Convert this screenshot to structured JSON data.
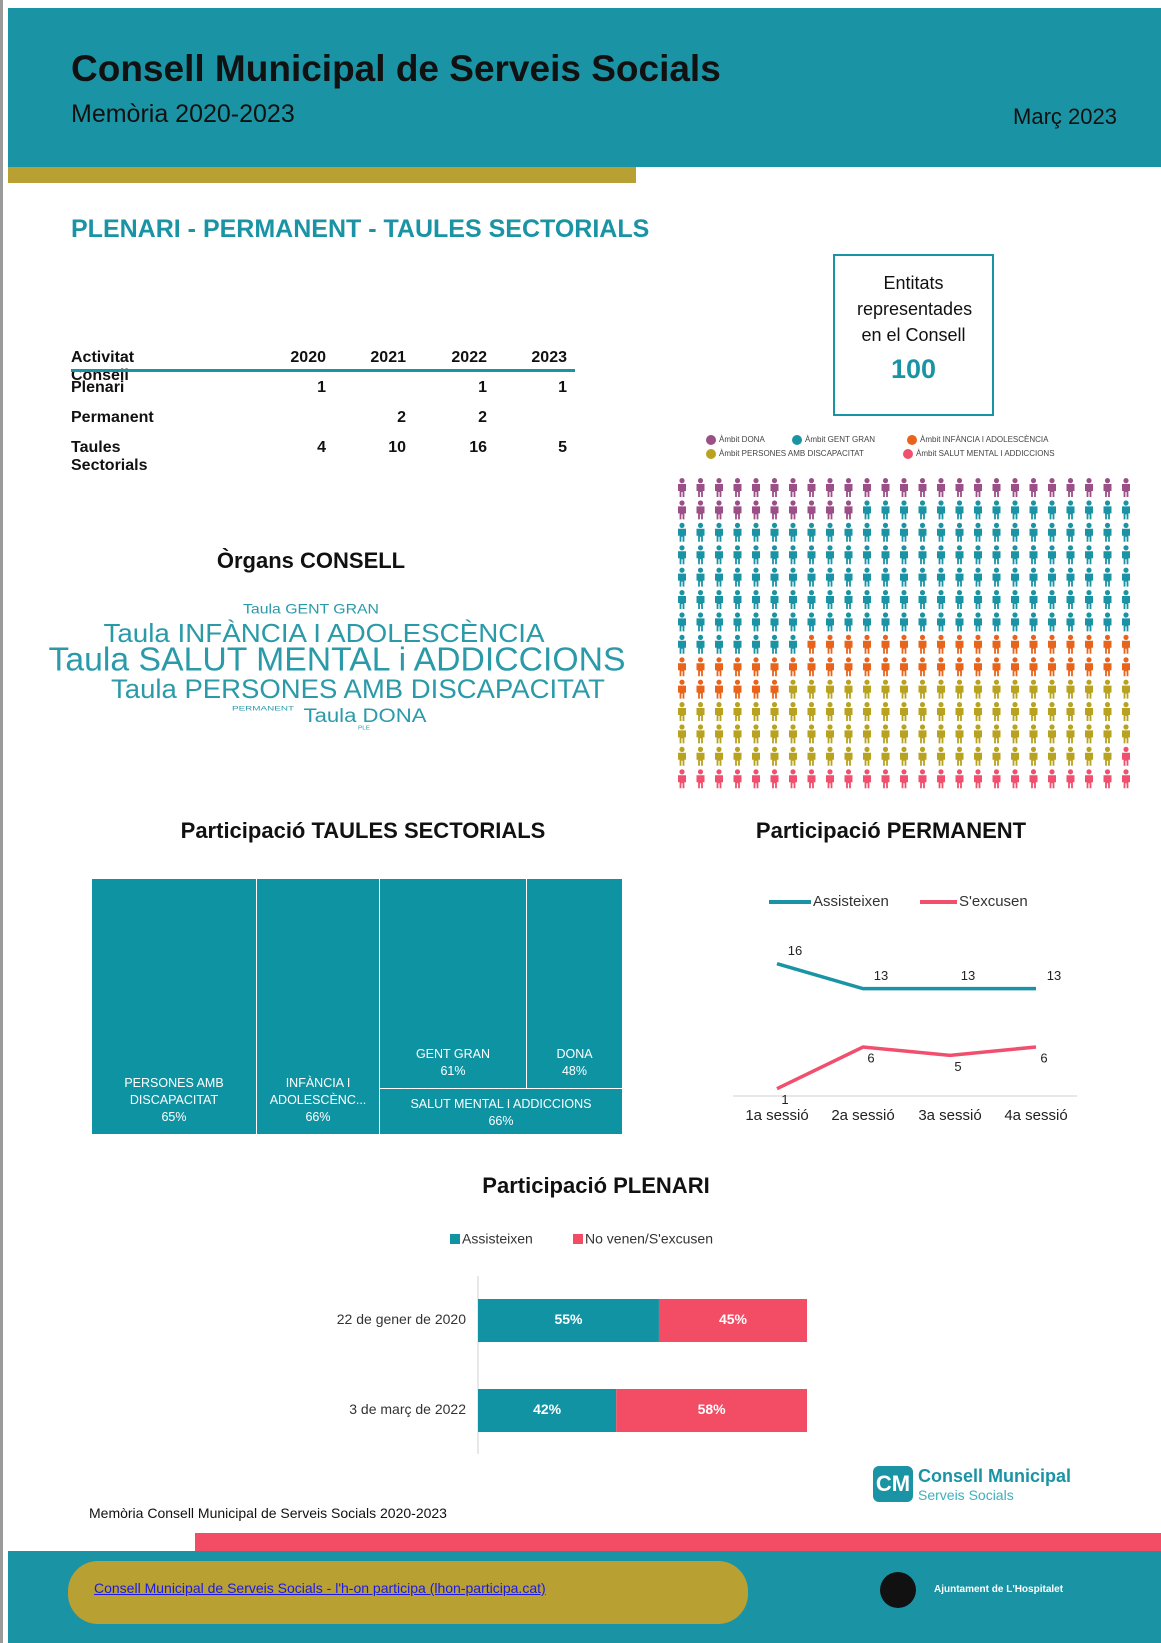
{
  "header": {
    "title": "Consell Municipal de Serveis Socials",
    "subtitle": "Memòria 2020-2023",
    "date": "Març 2023"
  },
  "section_title": "PLENARI - PERMANENT - TAULES SECTORIALS",
  "table": {
    "columns": [
      "Activitat Consell",
      "2020",
      "2021",
      "2022",
      "2023"
    ],
    "rows": [
      [
        "Plenari",
        1,
        null,
        1,
        1
      ],
      [
        "Permanent",
        null,
        2,
        2,
        null
      ],
      [
        "Taules Sectorials",
        4,
        10,
        16,
        5
      ]
    ]
  },
  "entities_box": {
    "label": "Entitats representades en el Consell",
    "value": 100
  },
  "word_cloud": {
    "title": "Òrgans CONSELL",
    "words": [
      "Taula GENT GRAN",
      "Taula INFÀNCIA I ADOLESCÈNCIA",
      "Taula SALUT MENTAL i ADDICCIONS",
      "Taula PERSONES AMB DISCAPACITAT",
      "PERMANENT",
      "Taula DONA",
      "PLE"
    ]
  },
  "chart_data": [
    {
      "type": "waffle",
      "series": [
        {
          "name": "Àmbit DONA",
          "color": "#9b4f87",
          "value": 35
        },
        {
          "name": "Àmbit GENT GRAN",
          "color": "#1a94a4",
          "value": 147
        },
        {
          "name": "Àmbit INFÀNCIA I ADOLESCÈNCIA",
          "color": "#e8641b",
          "value": 49
        },
        {
          "name": "Àmbit PERSONES AMB DISCAPACITAT",
          "color": "#b8a21f",
          "value": 93
        },
        {
          "name": "Àmbit SALUT MENTAL I ADDICCIONS",
          "color": "#f0506e",
          "value": 26
        }
      ]
    },
    {
      "type": "treemap",
      "title": "Participació TAULES SECTORIALS",
      "color": "#0e93a3",
      "categories": [
        "PERSONES AMB DISCAPACITAT",
        "INFÀNCIA I ADOLESCÈNC...",
        "GENT GRAN",
        "DONA",
        "SALUT MENTAL I ADDICCIONS"
      ],
      "values": [
        65,
        66,
        61,
        48,
        66
      ],
      "value_labels": [
        "65%",
        "66%",
        "61%",
        "48%",
        "66%"
      ]
    },
    {
      "type": "line",
      "title": "Participació PERMANENT",
      "categories": [
        "1a sessió",
        "2a sessió",
        "3a sessió",
        "4a sessió"
      ],
      "ylim": [
        0,
        18
      ],
      "series": [
        {
          "name": "Assisteixen",
          "color": "#1a94a4",
          "values": [
            16,
            13,
            13,
            13
          ]
        },
        {
          "name": "S'excusen",
          "color": "#f0506e",
          "values": [
            1,
            6,
            5,
            6
          ]
        }
      ]
    },
    {
      "type": "stacked_hbar",
      "title": "Participació PLENARI",
      "categories": [
        "22 de gener de 2020",
        "3 de març de 2022"
      ],
      "xlim": [
        0,
        100
      ],
      "series": [
        {
          "name": "Assisteixen",
          "color": "#1293a4",
          "values": [
            55,
            42
          ],
          "value_labels": [
            "55%",
            "42%"
          ]
        },
        {
          "name": "No venen/S'excusen",
          "color": "#f24d65",
          "values": [
            45,
            58
          ],
          "value_labels": [
            "45%",
            "58%"
          ]
        }
      ]
    }
  ],
  "footer": {
    "note": "Memòria Consell Municipal de Serveis Socials 2020-2023",
    "link": "Consell Municipal de Serveis Socials - l'h-on participa (lhon-participa.cat)",
    "logo_mark": "CM",
    "logo_title": "Consell Municipal",
    "logo_subtitle": "Serveis Socials",
    "city": "Ajuntament de L'Hospitalet"
  }
}
